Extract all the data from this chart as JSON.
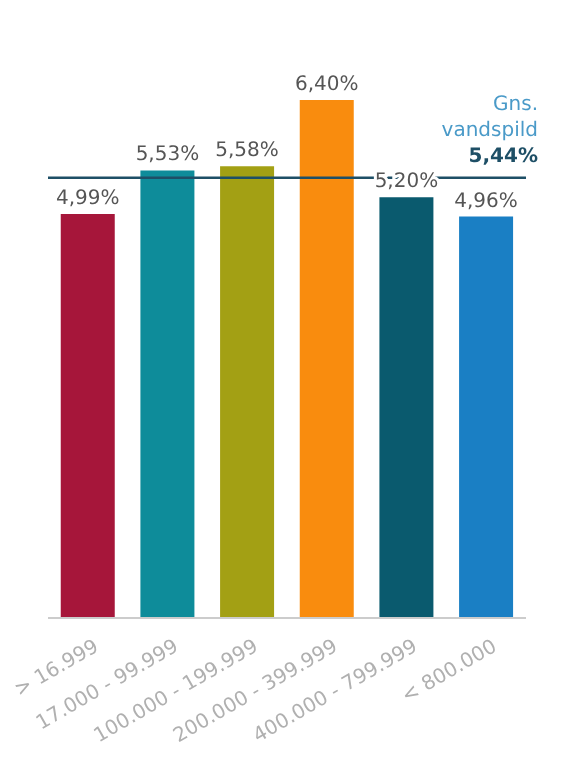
{
  "chart_data": {
    "type": "bar",
    "categories": [
      "> 16.999",
      "17.000 - 99.999",
      "100.000 - 199.999",
      "200.000 - 399.999",
      "400.000 - 799.999",
      "< 800.000"
    ],
    "values": [
      4.99,
      5.53,
      5.58,
      6.4,
      5.2,
      4.96
    ],
    "value_labels": [
      "4,99%",
      "5,53%",
      "5,58%",
      "6,40%",
      "5,20%",
      "4,96%"
    ],
    "colors": [
      "#a6163a",
      "#0e8c9a",
      "#a3a014",
      "#f98c0e",
      "#0a5a6e",
      "#1a7fc4"
    ],
    "ref_lines": [
      {
        "axis": "y",
        "value": 5.44,
        "label": "Gns. vandspild 5,44%",
        "color": "#1e4f66"
      }
    ],
    "grid": false,
    "legend": false
  }
}
